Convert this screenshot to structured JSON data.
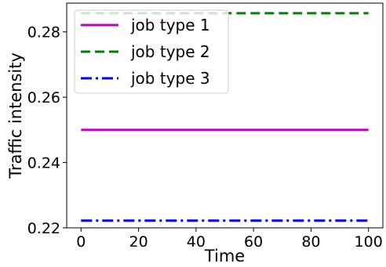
{
  "chart_data": {
    "type": "line",
    "xlabel": "Time",
    "ylabel": "Traffic intensity",
    "xlim": [
      -5,
      105
    ],
    "ylim": [
      0.22,
      0.2888
    ],
    "x_ticks": [
      0,
      20,
      40,
      60,
      80,
      100
    ],
    "x_tick_labels": [
      "0",
      "20",
      "40",
      "60",
      "80",
      "100"
    ],
    "y_ticks": [
      0.22,
      0.24,
      0.26,
      0.28
    ],
    "y_tick_labels": [
      "0.22",
      "0.24",
      "0.26",
      "0.28"
    ],
    "grid": false,
    "legend_position": "upper-left",
    "series": [
      {
        "name": "job type 1",
        "color": "#bf00bf",
        "style": "solid",
        "x": [
          0,
          100
        ],
        "values": [
          0.25,
          0.25
        ]
      },
      {
        "name": "job type 2",
        "color": "#008000",
        "style": "dashed",
        "x": [
          0,
          100
        ],
        "values": [
          0.2857,
          0.2857
        ]
      },
      {
        "name": "job type 3",
        "color": "#0000ff",
        "style": "dashdot",
        "x": [
          0,
          100
        ],
        "values": [
          0.2222,
          0.2222
        ]
      }
    ]
  }
}
